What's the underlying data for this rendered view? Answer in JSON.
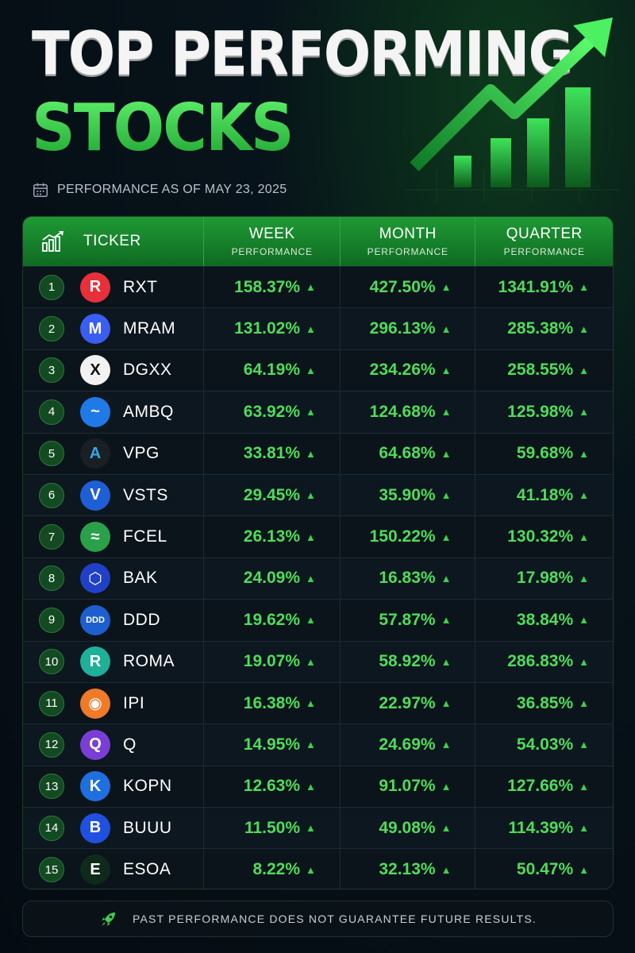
{
  "header": {
    "title_line1": "TOP PERFORMING",
    "title_line2": "STOCKS",
    "as_of": "PERFORMANCE AS OF MAY 23, 2025"
  },
  "table": {
    "columns": {
      "ticker": "TICKER",
      "week_main": "WEEK",
      "week_sub": "PERFORMANCE",
      "month_main": "MONTH",
      "month_sub": "PERFORMANCE",
      "quarter_main": "QUARTER",
      "quarter_sub": "PERFORMANCE"
    },
    "rows": [
      {
        "rank": "1",
        "ticker": "RXT",
        "logo": {
          "glyph": "R",
          "color": "#e8303a",
          "fg": "#ffffff"
        },
        "week": "158.37%",
        "month": "427.50%",
        "quarter": "1341.91%"
      },
      {
        "rank": "2",
        "ticker": "MRAM",
        "logo": {
          "glyph": "M",
          "color": "#3a5ef0",
          "fg": "#ffffff"
        },
        "week": "131.02%",
        "month": "296.13%",
        "quarter": "285.38%"
      },
      {
        "rank": "3",
        "ticker": "DGXX",
        "logo": {
          "glyph": "X",
          "color": "#f2f2f2",
          "fg": "#111111"
        },
        "week": "64.19%",
        "month": "234.26%",
        "quarter": "258.55%"
      },
      {
        "rank": "4",
        "ticker": "AMBQ",
        "logo": {
          "glyph": "~",
          "color": "#1f7ae8",
          "fg": "#ffffff"
        },
        "week": "63.92%",
        "month": "124.68%",
        "quarter": "125.98%"
      },
      {
        "rank": "5",
        "ticker": "VPG",
        "logo": {
          "glyph": "A",
          "color": "#1a1f24",
          "fg": "#35a8e8"
        },
        "week": "33.81%",
        "month": "64.68%",
        "quarter": "59.68%"
      },
      {
        "rank": "6",
        "ticker": "VSTS",
        "logo": {
          "glyph": "V",
          "color": "#1f5fd6",
          "fg": "#ffffff"
        },
        "week": "29.45%",
        "month": "35.90%",
        "quarter": "41.18%"
      },
      {
        "rank": "7",
        "ticker": "FCEL",
        "logo": {
          "glyph": "≈",
          "color": "#2aa04a",
          "fg": "#ffffff"
        },
        "week": "26.13%",
        "month": "150.22%",
        "quarter": "130.32%"
      },
      {
        "rank": "8",
        "ticker": "BAK",
        "logo": {
          "glyph": "⬡",
          "color": "#2040c8",
          "fg": "#ffffff"
        },
        "week": "24.09%",
        "month": "16.83%",
        "quarter": "17.98%"
      },
      {
        "rank": "9",
        "ticker": "DDD",
        "logo": {
          "glyph": "DDD",
          "color": "#1e5fd0",
          "fg": "#ffffff"
        },
        "week": "19.62%",
        "month": "57.87%",
        "quarter": "38.84%"
      },
      {
        "rank": "10",
        "ticker": "ROMA",
        "logo": {
          "glyph": "R",
          "color": "#1fb09a",
          "fg": "#ffffff"
        },
        "week": "19.07%",
        "month": "58.92%",
        "quarter": "286.83%"
      },
      {
        "rank": "11",
        "ticker": "IPI",
        "logo": {
          "glyph": "◉",
          "color": "#f07a28",
          "fg": "#ffffff"
        },
        "week": "16.38%",
        "month": "22.97%",
        "quarter": "36.85%"
      },
      {
        "rank": "12",
        "ticker": "Q",
        "logo": {
          "glyph": "Q",
          "color": "#7a3ed6",
          "fg": "#ffffff"
        },
        "week": "14.95%",
        "month": "24.69%",
        "quarter": "54.03%"
      },
      {
        "rank": "13",
        "ticker": "KOPN",
        "logo": {
          "glyph": "K",
          "color": "#1f6fe0",
          "fg": "#ffffff"
        },
        "week": "12.63%",
        "month": "91.07%",
        "quarter": "127.66%"
      },
      {
        "rank": "14",
        "ticker": "BUUU",
        "logo": {
          "glyph": "B",
          "color": "#2050e0",
          "fg": "#ffffff"
        },
        "week": "11.50%",
        "month": "49.08%",
        "quarter": "114.39%"
      },
      {
        "rank": "15",
        "ticker": "ESOA",
        "logo": {
          "glyph": "E",
          "color": "#0f2a1a",
          "fg": "#ffffff"
        },
        "week": "8.22%",
        "month": "32.13%",
        "quarter": "50.47%"
      }
    ]
  },
  "footer": {
    "disclaimer": "PAST PERFORMANCE DOES NOT GUARANTEE FUTURE RESULTS."
  },
  "colors": {
    "accent_green": "#4fdc5a",
    "header_green": "#1f9a35",
    "up_arrow": "#3fcf4c"
  },
  "chart_data": {
    "type": "table",
    "title": "TOP PERFORMING STOCKS",
    "subtitle": "PERFORMANCE AS OF MAY 23, 2025",
    "columns": [
      "TICKER",
      "WEEK PERFORMANCE",
      "MONTH PERFORMANCE",
      "QUARTER PERFORMANCE"
    ],
    "series": [
      {
        "name": "WEEK PERFORMANCE",
        "values": [
          158.37,
          131.02,
          64.19,
          63.92,
          33.81,
          29.45,
          26.13,
          24.09,
          19.62,
          19.07,
          16.38,
          14.95,
          12.63,
          11.5,
          8.22
        ]
      },
      {
        "name": "MONTH PERFORMANCE",
        "values": [
          427.5,
          296.13,
          234.26,
          124.68,
          64.68,
          35.9,
          150.22,
          16.83,
          57.87,
          58.92,
          22.97,
          24.69,
          91.07,
          49.08,
          32.13
        ]
      },
      {
        "name": "QUARTER PERFORMANCE",
        "values": [
          1341.91,
          285.38,
          258.55,
          125.98,
          59.68,
          41.18,
          130.32,
          17.98,
          38.84,
          286.83,
          36.85,
          54.03,
          127.66,
          114.39,
          50.47
        ]
      }
    ],
    "categories": [
      "RXT",
      "MRAM",
      "DGXX",
      "AMBQ",
      "VPG",
      "VSTS",
      "FCEL",
      "BAK",
      "DDD",
      "ROMA",
      "IPI",
      "Q",
      "KOPN",
      "BUUU",
      "ESOA"
    ]
  }
}
